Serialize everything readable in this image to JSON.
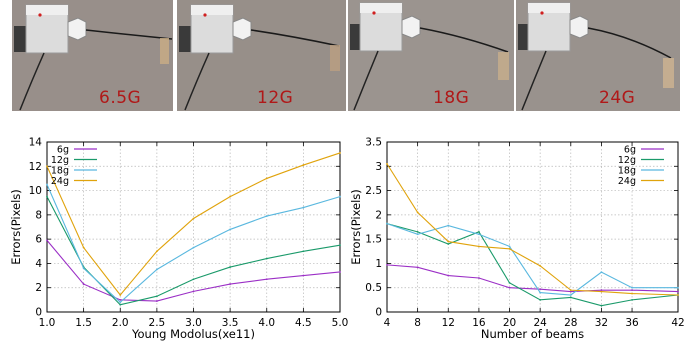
{
  "photos": [
    {
      "label": "6.5G"
    },
    {
      "label": "12G"
    },
    {
      "label": "18G"
    },
    {
      "label": "24G"
    }
  ],
  "colors": {
    "6g": "#9b2fc6",
    "12g": "#1a9a6a",
    "18g": "#5ab8df",
    "24g": "#e0a30c",
    "caption": "#b01818"
  },
  "chart_data": [
    {
      "type": "line",
      "xlabel": "Young Modolus(xe11)",
      "ylabel": "Errors(Pixels)",
      "x": [
        1.0,
        1.5,
        2.0,
        2.5,
        3.0,
        3.5,
        4.0,
        4.5,
        5.0
      ],
      "xticks": [
        "1.0",
        "1.5",
        "2.0",
        "2.5",
        "3.0",
        "3.5",
        "4.0",
        "4.5",
        "5.0"
      ],
      "yticks": [
        "0",
        "2",
        "4",
        "6",
        "8",
        "10",
        "12",
        "14"
      ],
      "xlim": [
        1.0,
        5.0
      ],
      "ylim": [
        0,
        14
      ],
      "grid": true,
      "legend": "top-left",
      "series": [
        {
          "name": "6g",
          "color": "#9b2fc6",
          "values": [
            5.9,
            2.3,
            1.0,
            0.9,
            1.7,
            2.3,
            2.7,
            3.0,
            3.3
          ]
        },
        {
          "name": "12g",
          "color": "#1a9a6a",
          "values": [
            9.5,
            3.7,
            0.6,
            1.3,
            2.7,
            3.7,
            4.4,
            5.0,
            5.5
          ]
        },
        {
          "name": "18g",
          "color": "#5ab8df",
          "values": [
            10.5,
            3.6,
            0.8,
            3.5,
            5.3,
            6.8,
            7.9,
            8.6,
            9.5
          ]
        },
        {
          "name": "24g",
          "color": "#e0a30c",
          "values": [
            12.0,
            5.3,
            1.4,
            5.0,
            7.7,
            9.5,
            11.0,
            12.1,
            13.1
          ]
        }
      ]
    },
    {
      "type": "line",
      "xlabel": "Number of beams",
      "ylabel": "Errors(Pixels)",
      "x": [
        4,
        8,
        12,
        16,
        20,
        24,
        28,
        32,
        36,
        42
      ],
      "xticks": [
        "4",
        "8",
        "12",
        "16",
        "20",
        "24",
        "28",
        "32",
        "36",
        "42"
      ],
      "yticks": [
        "0",
        "0.5",
        "1",
        "1.5",
        "2",
        "2.5",
        "3",
        "3.5"
      ],
      "xlim": [
        4,
        42
      ],
      "ylim": [
        0,
        3.5
      ],
      "grid": true,
      "legend": "top-right",
      "series": [
        {
          "name": "6g",
          "color": "#9b2fc6",
          "values": [
            0.97,
            0.92,
            0.75,
            0.7,
            0.5,
            0.47,
            0.42,
            0.45,
            0.45,
            0.42
          ]
        },
        {
          "name": "12g",
          "color": "#1a9a6a",
          "values": [
            1.82,
            1.65,
            1.4,
            1.65,
            0.6,
            0.25,
            0.3,
            0.13,
            0.25,
            0.35
          ]
        },
        {
          "name": "18g",
          "color": "#5ab8df",
          "values": [
            1.82,
            1.6,
            1.78,
            1.6,
            1.35,
            0.4,
            0.35,
            0.82,
            0.5,
            0.5
          ]
        },
        {
          "name": "24g",
          "color": "#e0a30c",
          "values": [
            3.05,
            2.05,
            1.45,
            1.35,
            1.3,
            0.95,
            0.45,
            0.42,
            0.38,
            0.35
          ]
        }
      ]
    }
  ]
}
